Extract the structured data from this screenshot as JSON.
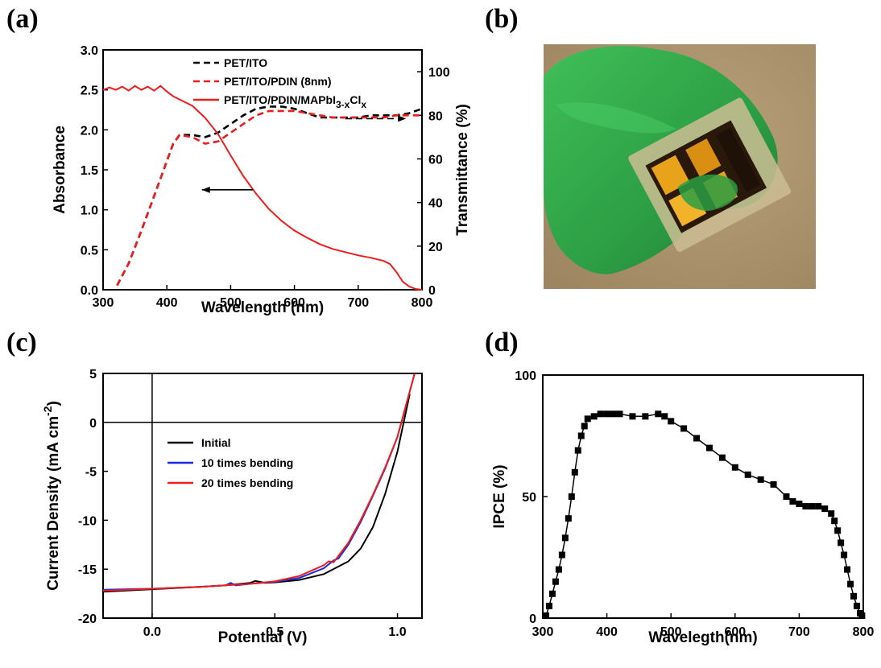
{
  "panels": {
    "a": "(a)",
    "b": "(b)",
    "c": "(c)",
    "d": "(d)"
  },
  "photo": {
    "colors": {
      "background": "#a8926a",
      "glove": "#32a84a",
      "substrate": "#c9b98f",
      "cell": "#1e1208",
      "electrode": "#e8a21a"
    }
  },
  "chart_data": [
    {
      "id": "a",
      "type": "line",
      "xlabel": "Wavelength (nm)",
      "ylabel": "Absorbance",
      "y2label": "Transmittance (%)",
      "xlim": [
        300,
        800
      ],
      "ylim": [
        0,
        3.0
      ],
      "y2lim": [
        0,
        110
      ],
      "xticks": [
        "300",
        "400",
        "500",
        "600",
        "700",
        "800"
      ],
      "yticks": [
        "0.0",
        "0.5",
        "1.0",
        "1.5",
        "2.0",
        "2.5",
        "3.0"
      ],
      "y2ticks": [
        "0",
        "20",
        "40",
        "60",
        "80",
        "100"
      ],
      "legend_position": "top",
      "series": [
        {
          "name": "PET/ITO",
          "axis": "right",
          "style": "dashed",
          "color": "#000000",
          "x": [
            322,
            340,
            360,
            380,
            400,
            410,
            420,
            440,
            460,
            480,
            500,
            520,
            540,
            560,
            580,
            600,
            620,
            640,
            660,
            680,
            700,
            720,
            740,
            760,
            780,
            800
          ],
          "y": [
            2,
            12,
            27,
            43,
            59,
            67,
            71,
            71,
            70,
            72,
            76,
            80,
            83,
            84,
            84,
            83,
            81,
            79,
            79,
            79,
            79,
            80,
            80,
            80,
            81,
            83
          ]
        },
        {
          "name": "PET/ITO/PDIN (8nm)",
          "axis": "right",
          "style": "dashed",
          "color": "#ee1c1c",
          "x": [
            322,
            340,
            360,
            380,
            400,
            410,
            420,
            440,
            460,
            480,
            500,
            520,
            540,
            560,
            580,
            600,
            620,
            640,
            660,
            680,
            700,
            720,
            740,
            760,
            780,
            800
          ],
          "y": [
            2,
            12,
            27,
            43,
            59,
            67,
            71,
            70,
            67,
            68,
            72,
            76,
            80,
            82,
            82,
            82,
            81,
            80,
            79,
            79,
            79,
            79,
            79,
            80,
            80,
            80
          ]
        },
        {
          "name": "PET/ITO/PDIN/MAPbI3-xClx",
          "axis": "left",
          "style": "solid",
          "color": "#ee1c1c",
          "x": [
            300,
            310,
            320,
            330,
            340,
            350,
            360,
            370,
            380,
            390,
            400,
            410,
            420,
            440,
            460,
            480,
            500,
            520,
            540,
            560,
            580,
            600,
            620,
            640,
            660,
            680,
            700,
            720,
            740,
            750,
            760,
            770,
            780,
            790,
            800
          ],
          "y": [
            2.5,
            2.53,
            2.5,
            2.54,
            2.49,
            2.55,
            2.5,
            2.54,
            2.49,
            2.55,
            2.48,
            2.42,
            2.38,
            2.3,
            2.15,
            1.95,
            1.68,
            1.42,
            1.2,
            1.01,
            0.86,
            0.74,
            0.65,
            0.57,
            0.51,
            0.47,
            0.43,
            0.4,
            0.36,
            0.32,
            0.22,
            0.1,
            0.04,
            0.01,
            0.0
          ]
        }
      ],
      "annotations": [
        {
          "type": "arrow",
          "style": "solid",
          "direction": "left",
          "from": [
            535,
            1.25
          ],
          "to": [
            455,
            1.25
          ]
        },
        {
          "type": "arrow",
          "style": "dashed",
          "direction": "right",
          "from": [
            680,
            2.14
          ],
          "to": [
            775,
            2.14
          ]
        }
      ]
    },
    {
      "id": "c",
      "type": "line",
      "xlabel": "Potential (V)",
      "ylabel_base": "Current Density (mA cm",
      "ylabel_sup": "-2",
      "ylabel_tail": ")",
      "xlim": [
        -0.2,
        1.1
      ],
      "ylim": [
        -20,
        5
      ],
      "xticks": [
        "0.0",
        "0.5",
        "1.0"
      ],
      "yticks": [
        "-20",
        "-15",
        "-10",
        "-5",
        "0",
        "5"
      ],
      "legend_position": "center-left",
      "series": [
        {
          "name": "Initial",
          "color": "#000000",
          "x": [
            -0.2,
            0.0,
            0.2,
            0.3,
            0.4,
            0.42,
            0.44,
            0.46,
            0.5,
            0.6,
            0.7,
            0.8,
            0.85,
            0.9,
            0.95,
            1.0,
            1.05
          ],
          "y": [
            -17.3,
            -17.05,
            -16.8,
            -16.65,
            -16.4,
            -16.2,
            -16.3,
            -16.4,
            -16.35,
            -16.1,
            -15.5,
            -14.2,
            -12.9,
            -10.7,
            -7.3,
            -3.0,
            2.9
          ]
        },
        {
          "name": "10 times bending",
          "color": "#1a2bde",
          "x": [
            -0.2,
            0.0,
            0.2,
            0.3,
            0.32,
            0.34,
            0.4,
            0.5,
            0.6,
            0.7,
            0.74,
            0.76,
            0.8,
            0.85,
            0.9,
            0.95,
            1.0,
            1.07
          ],
          "y": [
            -17.1,
            -17.0,
            -16.8,
            -16.65,
            -16.4,
            -16.65,
            -16.5,
            -16.3,
            -15.9,
            -14.9,
            -14.1,
            -13.9,
            -12.5,
            -10.2,
            -7.5,
            -4.7,
            -1.5,
            5.0
          ]
        },
        {
          "name": "20 times bending",
          "color": "#ee1c1c",
          "x": [
            -0.2,
            0.0,
            0.2,
            0.3,
            0.4,
            0.5,
            0.6,
            0.7,
            0.72,
            0.74,
            0.8,
            0.85,
            0.9,
            0.95,
            1.0,
            1.07
          ],
          "y": [
            -17.2,
            -17.0,
            -16.8,
            -16.65,
            -16.5,
            -16.25,
            -15.7,
            -14.6,
            -14.2,
            -14.3,
            -12.3,
            -10.0,
            -7.4,
            -4.6,
            -1.5,
            5.0
          ]
        }
      ],
      "reference_lines": {
        "x": 0,
        "y": 0
      }
    },
    {
      "id": "d",
      "type": "line",
      "marker": "square",
      "xlabel": "Waveleg​th(nm)",
      "ylabel": "IPCE (%)",
      "xlim": [
        300,
        800
      ],
      "ylim": [
        0,
        100
      ],
      "xticks": [
        "300",
        "400",
        "500",
        "600",
        "700",
        "800"
      ],
      "yticks": [
        "0",
        "50",
        "100"
      ],
      "series": [
        {
          "name": "",
          "color": "#000000",
          "x": [
            305,
            310,
            315,
            320,
            325,
            330,
            335,
            340,
            345,
            350,
            355,
            360,
            365,
            370,
            380,
            390,
            400,
            410,
            420,
            440,
            460,
            480,
            490,
            500,
            520,
            540,
            560,
            580,
            600,
            620,
            640,
            660,
            680,
            690,
            700,
            710,
            720,
            730,
            740,
            750,
            755,
            760,
            765,
            770,
            775,
            780,
            785,
            790,
            795,
            798
          ],
          "y": [
            1,
            5,
            10,
            15,
            20,
            26,
            33,
            41,
            50,
            60,
            69,
            75,
            79,
            82,
            83,
            84,
            84,
            84,
            84,
            83,
            83,
            84,
            83,
            81,
            78,
            74,
            70,
            66,
            62,
            59,
            57,
            55,
            50,
            48,
            47,
            46,
            46,
            46,
            45,
            43,
            40,
            36,
            31,
            26,
            20,
            14,
            9,
            5,
            2,
            1
          ]
        }
      ]
    }
  ]
}
